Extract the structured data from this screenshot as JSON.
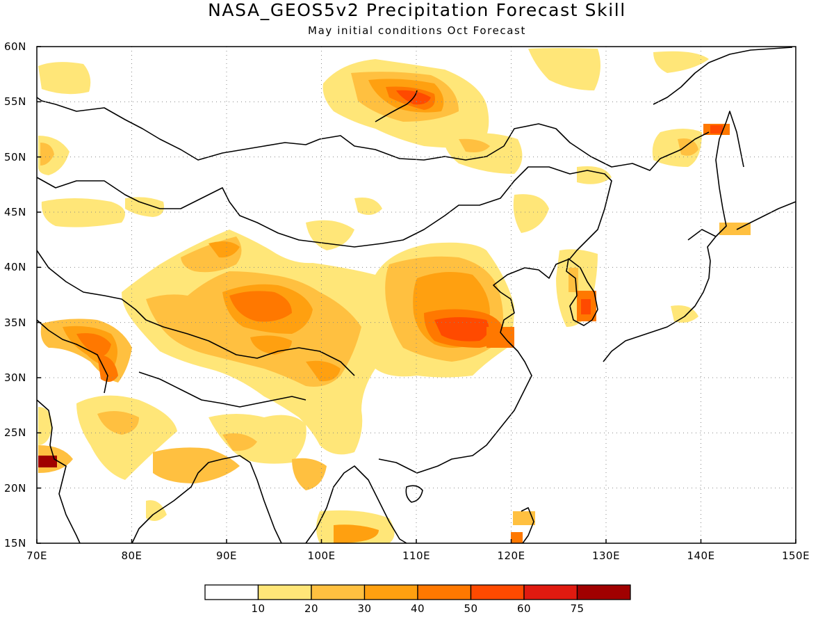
{
  "title": "NASA_GEOS5v2 Precipitation Forecast Skill",
  "subtitle": "May initial conditions  Oct Forecast",
  "map": {
    "lon_range": [
      70,
      150
    ],
    "lat_range": [
      15,
      60
    ],
    "lat_labels": [
      "60N",
      "55N",
      "50N",
      "45N",
      "40N",
      "35N",
      "30N",
      "25N",
      "20N",
      "15N"
    ],
    "lon_labels": [
      "70E",
      "80E",
      "90E",
      "100E",
      "110E",
      "120E",
      "130E",
      "140E",
      "150E"
    ],
    "grid": "dotted"
  },
  "colorbar": {
    "labels": [
      "10",
      "20",
      "30",
      "40",
      "50",
      "60",
      "75"
    ],
    "colors": [
      "#ffffff",
      "#ffe678",
      "#ffc040",
      "#ffa010",
      "#ff7800",
      "#ff4a00",
      "#e01a10",
      "#a00000"
    ]
  }
}
